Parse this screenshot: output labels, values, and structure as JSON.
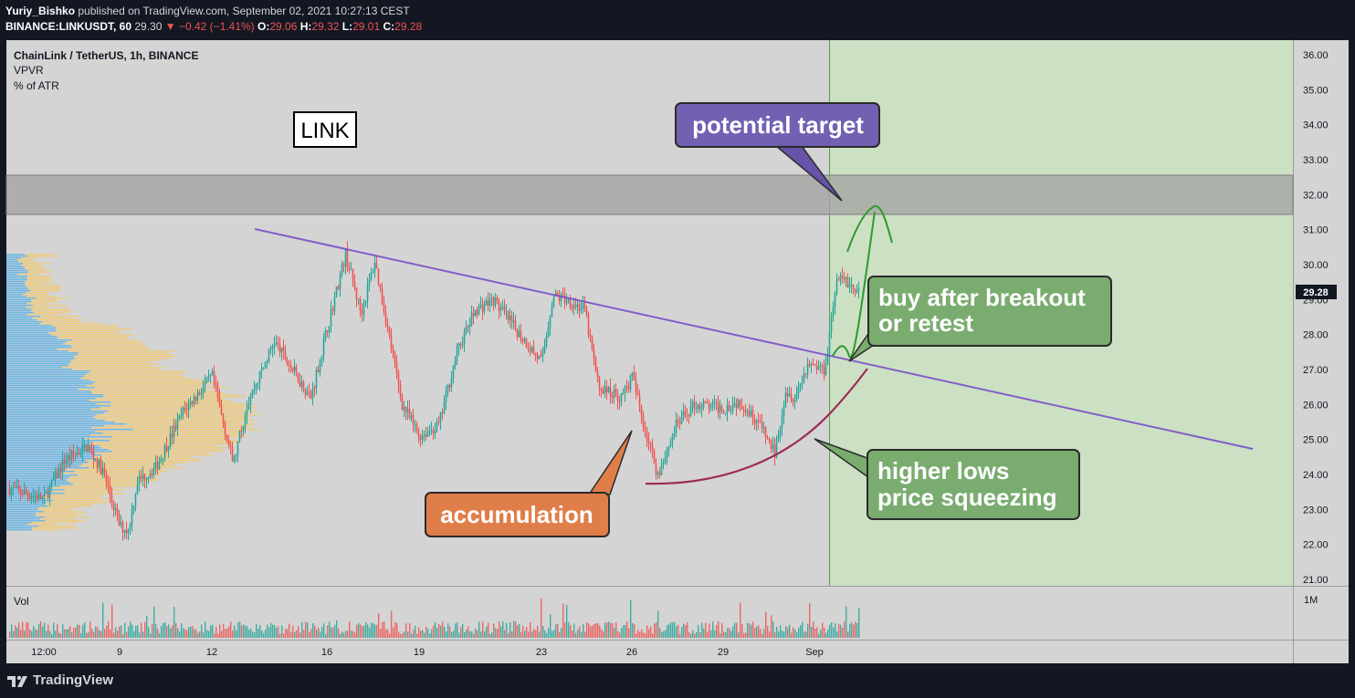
{
  "header": {
    "publisher": "Yuriy_Bishko",
    "published_text": "published on TradingView.com, September 02, 2021 10:27:13 CEST",
    "symbol": "BINANCE:LINKUSDT, 60",
    "last": "29.30",
    "change": "▼ −0.42 (−1.41%)",
    "o_label": "O:",
    "o": "29.06",
    "h_label": "H:",
    "h": "29.32",
    "l_label": "L:",
    "l": "29.01",
    "c_label": "C:",
    "c": "29.28"
  },
  "legend": {
    "title": "ChainLink / TetherUS, 1h, BINANCE",
    "ind1": "VPVR",
    "ind2": "% of ATR",
    "vol": "Vol"
  },
  "annotations": {
    "link": "LINK",
    "target": "potential target",
    "buy_line1": "buy after breakout",
    "buy_line2": "or retest",
    "higher_line1": "higher lows",
    "higher_line2": "price squeezing",
    "accumulation": "accumulation"
  },
  "price_label": "29.28",
  "vol_axis_label": "1M",
  "brand": "TradingView",
  "colors": {
    "up": "#26a69a",
    "down": "#ef5350",
    "trendline": "#7e57c2",
    "target_box": "#6753a8",
    "green_box": "#7aac6f",
    "orange_box": "#e07e4a",
    "projection_zone": "#cce0c4",
    "resistance_zone": "#aeaeae"
  },
  "chart_data": {
    "type": "candlestick",
    "symbol": "LINKUSDT",
    "timeframe": "1h",
    "ylim": [
      21.0,
      36.5
    ],
    "y_ticks": [
      "21.00",
      "22.00",
      "23.00",
      "24.00",
      "25.00",
      "26.00",
      "27.00",
      "28.00",
      "29.00",
      "30.00",
      "31.00",
      "32.00",
      "33.00",
      "34.00",
      "35.00",
      "36.00"
    ],
    "x_ticks": [
      "12:00",
      "9",
      "12",
      "16",
      "19",
      "23",
      "26",
      "29",
      "Sep"
    ],
    "resistance_zone": [
      31.5,
      32.6
    ],
    "trendline": [
      {
        "t": "12",
        "price": 31.1
      },
      {
        "t": "Sep",
        "price": 27.5
      }
    ],
    "path": [
      {
        "t": "12:00",
        "price": 23.3
      },
      {
        "t": "9",
        "price": 22.5
      },
      {
        "t": "12",
        "price": 26.8
      },
      {
        "t": "16",
        "price": 30.3
      },
      {
        "t": "19",
        "price": 25.1
      },
      {
        "t": "23",
        "price": 29.2
      },
      {
        "t": "26",
        "price": 25.4
      },
      {
        "t": "29",
        "price": 25.9
      },
      {
        "t": "Sep",
        "price": 29.3
      }
    ]
  }
}
